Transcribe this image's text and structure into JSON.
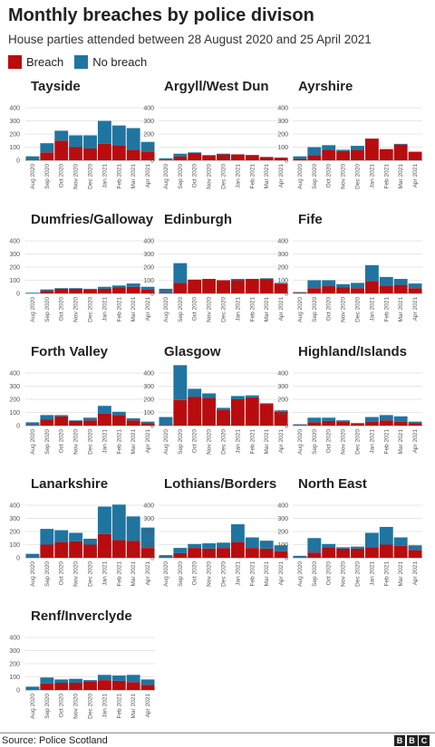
{
  "title": "Monthly breaches by police divison",
  "subtitle": "House parties attended between 28 August 2020 and 25 April 2021",
  "legend": [
    {
      "label": "Breach",
      "color": "#b80c0f"
    },
    {
      "label": "No breach",
      "color": "#1f75a0"
    }
  ],
  "source": "Source: Police Scotland",
  "logo": [
    "B",
    "B",
    "C"
  ],
  "chart_data": {
    "type": "bar",
    "stacked": true,
    "layout": "small-multiples",
    "categories": [
      "Aug 2020",
      "Sep 2020",
      "Oct 2020",
      "Nov 2020",
      "Dec 2020",
      "Jan 2021",
      "Feb 2021",
      "Mar 2021",
      "Apr 2021"
    ],
    "ylim": [
      0,
      400
    ],
    "yticks": [
      0,
      100,
      200,
      300,
      400
    ],
    "grid": true,
    "legend_position": "top-left",
    "series_names": [
      "Breach",
      "No breach"
    ],
    "panels": [
      {
        "name": "Tayside",
        "breach": [
          0,
          60,
          150,
          100,
          90,
          125,
          115,
          80,
          65
        ],
        "no_breach": [
          30,
          70,
          75,
          90,
          100,
          175,
          150,
          165,
          75
        ]
      },
      {
        "name": "Argyll/West Dun",
        "breach": [
          5,
          30,
          55,
          35,
          45,
          45,
          40,
          25,
          20
        ],
        "no_breach": [
          10,
          20,
          5,
          5,
          5,
          0,
          0,
          0,
          0
        ]
      },
      {
        "name": "Ayrshire",
        "breach": [
          10,
          40,
          80,
          70,
          80,
          165,
          85,
          120,
          65
        ],
        "no_breach": [
          20,
          60,
          35,
          10,
          30,
          0,
          0,
          5,
          0
        ]
      },
      {
        "name": "Dumfries/Galloway",
        "breach": [
          0,
          20,
          35,
          35,
          30,
          35,
          45,
          50,
          30
        ],
        "no_breach": [
          5,
          10,
          5,
          5,
          5,
          15,
          15,
          25,
          20
        ]
      },
      {
        "name": "Edinburgh",
        "breach": [
          5,
          80,
          105,
          110,
          100,
          100,
          110,
          110,
          75
        ],
        "no_breach": [
          30,
          150,
          0,
          0,
          0,
          10,
          0,
          5,
          5
        ]
      },
      {
        "name": "Fife",
        "breach": [
          5,
          40,
          55,
          45,
          40,
          95,
          60,
          65,
          40
        ],
        "no_breach": [
          5,
          60,
          45,
          25,
          40,
          120,
          65,
          45,
          35
        ]
      },
      {
        "name": "Forth Valley",
        "breach": [
          5,
          45,
          70,
          35,
          40,
          90,
          80,
          40,
          20
        ],
        "no_breach": [
          20,
          35,
          10,
          5,
          20,
          60,
          25,
          15,
          10
        ]
      },
      {
        "name": "Glasgow",
        "breach": [
          5,
          195,
          220,
          210,
          120,
          200,
          215,
          165,
          105
        ],
        "no_breach": [
          60,
          265,
          60,
          35,
          15,
          25,
          15,
          5,
          10
        ]
      },
      {
        "name": "Highland/Islands",
        "breach": [
          5,
          25,
          35,
          30,
          15,
          30,
          40,
          30,
          20
        ],
        "no_breach": [
          5,
          35,
          25,
          10,
          5,
          35,
          40,
          40,
          10
        ]
      },
      {
        "name": "Lanarkshire",
        "breach": [
          5,
          100,
          120,
          125,
          100,
          180,
          135,
          130,
          75
        ],
        "no_breach": [
          25,
          120,
          90,
          65,
          45,
          210,
          270,
          185,
          155
        ]
      },
      {
        "name": "Lothians/Borders",
        "breach": [
          5,
          35,
          75,
          70,
          75,
          120,
          75,
          70,
          50
        ],
        "no_breach": [
          15,
          40,
          30,
          40,
          40,
          135,
          80,
          60,
          45
        ]
      },
      {
        "name": "North East",
        "breach": [
          5,
          40,
          80,
          70,
          70,
          80,
          100,
          90,
          60
        ],
        "no_breach": [
          10,
          110,
          25,
          10,
          15,
          110,
          135,
          65,
          35
        ]
      },
      {
        "name": "Renf/Inverclyde",
        "breach": [
          5,
          50,
          55,
          55,
          65,
          75,
          70,
          60,
          40
        ],
        "no_breach": [
          20,
          45,
          25,
          30,
          10,
          40,
          40,
          55,
          40
        ]
      }
    ]
  }
}
